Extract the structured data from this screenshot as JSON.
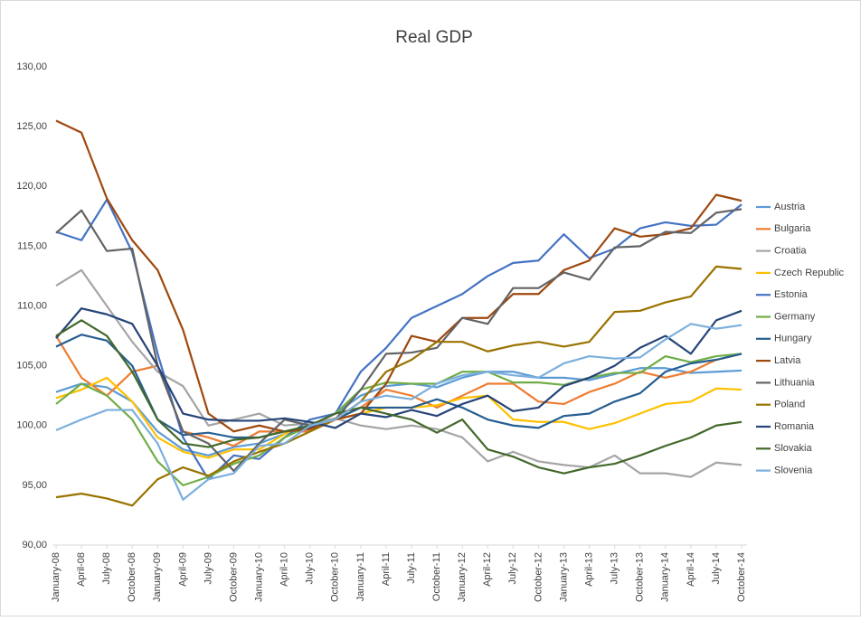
{
  "chart_data": {
    "type": "line",
    "title": "Real GDP",
    "categories": [
      "January-08",
      "April-08",
      "July-08",
      "October-08",
      "January-09",
      "April-09",
      "July-09",
      "October-09",
      "January-10",
      "April-10",
      "July-10",
      "October-10",
      "January-11",
      "April-11",
      "July-11",
      "October-11",
      "January-12",
      "April-12",
      "July-12",
      "October-12",
      "January-13",
      "April-13",
      "July-13",
      "October-13",
      "January-14",
      "April-14",
      "July-14",
      "October-14"
    ],
    "ylim": [
      90,
      130
    ],
    "yticks": [
      {
        "value": 90,
        "label": "90,00"
      },
      {
        "value": 95,
        "label": "95,00"
      },
      {
        "value": 100,
        "label": "100,00"
      },
      {
        "value": 105,
        "label": "105,00"
      },
      {
        "value": 110,
        "label": "110,00"
      },
      {
        "value": 115,
        "label": "115,00"
      },
      {
        "value": 120,
        "label": "120,00"
      },
      {
        "value": 125,
        "label": "125,00"
      },
      {
        "value": 130,
        "label": "130,00"
      }
    ],
    "legend": "right",
    "series": [
      {
        "name": "Austria",
        "color": "#5b9bd5",
        "values": [
          102.8,
          103.5,
          103.2,
          102,
          99.5,
          98,
          97.5,
          98.2,
          98.5,
          99.3,
          100,
          101,
          102.5,
          103.3,
          103.5,
          103.2,
          104,
          104.5,
          104.5,
          104,
          104,
          103.8,
          104.3,
          104.8,
          104.8,
          104.4,
          104.5,
          104.6
        ]
      },
      {
        "name": "Bulgaria",
        "color": "#ed7d31",
        "values": [
          107.5,
          104,
          102.5,
          104.5,
          105,
          99.5,
          99,
          98.3,
          99.5,
          99.5,
          99.5,
          100.5,
          101.5,
          103,
          102.5,
          101.5,
          102.5,
          103.5,
          103.5,
          102,
          101.8,
          102.8,
          103.5,
          104.5,
          104,
          104.5,
          105.5,
          106
        ]
      },
      {
        "name": "Croatia",
        "color": "#a5a5a5",
        "values": [
          111.7,
          113,
          110,
          107,
          104.5,
          103.3,
          100,
          100.5,
          101,
          100,
          100.2,
          100.6,
          100,
          99.7,
          100,
          99.7,
          99,
          97,
          97.8,
          97,
          96.7,
          96.5,
          97.5,
          96,
          96,
          95.7,
          96.9,
          96.7
        ]
      },
      {
        "name": "Czech Republic",
        "color": "#ffc000",
        "values": [
          102.3,
          103,
          104,
          102,
          99,
          97.8,
          97.3,
          98,
          98,
          99.3,
          100,
          100.5,
          101,
          101.5,
          101.5,
          101.7,
          102.3,
          102.5,
          100.5,
          100.3,
          100.3,
          99.7,
          100.2,
          101,
          101.8,
          102,
          103.1,
          103
        ]
      },
      {
        "name": "Estonia",
        "color": "#4472c4",
        "values": [
          116.2,
          115.5,
          118.9,
          114.5,
          106,
          99,
          95.5,
          97.5,
          97.2,
          99,
          100.5,
          101,
          104.5,
          106.5,
          109,
          110,
          111,
          112.5,
          113.6,
          113.8,
          116,
          114,
          114.8,
          116.5,
          117,
          116.7,
          116.8,
          118.5
        ]
      },
      {
        "name": "Germany",
        "color": "#70ad47",
        "values": [
          101.8,
          103.5,
          102.5,
          100.5,
          97,
          95,
          95.7,
          96.8,
          97.5,
          99,
          100,
          101,
          103,
          103.6,
          103.5,
          103.5,
          104.5,
          104.5,
          103.6,
          103.6,
          103.4,
          104,
          104.4,
          104.4,
          105.8,
          105.3,
          105.8,
          106
        ]
      },
      {
        "name": "Hungary",
        "color": "#255e91",
        "values": [
          106.6,
          107.6,
          107.1,
          105,
          100.5,
          99.2,
          99.4,
          99,
          99,
          99.5,
          99.8,
          100.5,
          101.5,
          101.5,
          101.5,
          102.2,
          101.5,
          100.5,
          100,
          99.8,
          100.8,
          101,
          102,
          102.7,
          104.5,
          105.2,
          105.5,
          106
        ]
      },
      {
        "name": "Latvia",
        "color": "#9e480e",
        "values": [
          125.5,
          124.5,
          119,
          115.5,
          113,
          108,
          101,
          99.5,
          100,
          99.5,
          99.7,
          100.5,
          101,
          103.5,
          107.5,
          107,
          109,
          109,
          111,
          111,
          113,
          113.8,
          116.5,
          115.8,
          116,
          116.5,
          119.3,
          118.8
        ]
      },
      {
        "name": "Lithuania",
        "color": "#636363",
        "values": [
          116.1,
          118,
          114.6,
          114.8,
          105,
          99.5,
          98.5,
          96.2,
          98.5,
          100.5,
          100,
          100.5,
          103,
          106,
          106.1,
          106.5,
          109,
          108.5,
          111.5,
          111.5,
          112.8,
          112.2,
          114.9,
          115,
          116.2,
          116.1,
          117.8,
          118.1
        ]
      },
      {
        "name": "Poland",
        "color": "#997300",
        "values": [
          94,
          94.3,
          93.9,
          93.3,
          95.5,
          96.5,
          95.8,
          97,
          97.8,
          98.5,
          99.5,
          100.5,
          102,
          104.5,
          105.5,
          107,
          107,
          106.2,
          106.7,
          107,
          106.6,
          107,
          109.5,
          109.6,
          110.3,
          110.8,
          113.3,
          113.1
        ]
      },
      {
        "name": "Romania",
        "color": "#264478",
        "values": [
          107.3,
          109.8,
          109.3,
          108.5,
          105,
          101,
          100.5,
          100.4,
          100.4,
          100.6,
          100.3,
          99.8,
          101,
          100.7,
          101.3,
          100.8,
          101.8,
          102.5,
          101.2,
          101.5,
          103.3,
          104,
          105,
          106.5,
          107.5,
          106,
          108.8,
          109.6
        ]
      },
      {
        "name": "Slovakia",
        "color": "#43682b",
        "values": [
          107.5,
          108.8,
          107.5,
          104.5,
          100.5,
          98.5,
          98.2,
          98.8,
          99,
          99.5,
          100,
          101,
          101.5,
          101,
          100.5,
          99.4,
          100.5,
          98,
          97.4,
          96.5,
          96,
          96.5,
          96.8,
          97.5,
          98.3,
          99,
          100,
          100.3
        ]
      },
      {
        "name": "Slovenia",
        "color": "#7cafdd",
        "values": [
          99.6,
          100.5,
          101.3,
          101.3,
          98.5,
          93.8,
          95.5,
          96,
          98.3,
          98.5,
          100,
          100.5,
          102,
          102.5,
          102.2,
          103.5,
          104.2,
          104.5,
          104.2,
          104,
          105.2,
          105.8,
          105.6,
          105.7,
          107.2,
          108.5,
          108.1,
          108.4
        ]
      }
    ]
  }
}
